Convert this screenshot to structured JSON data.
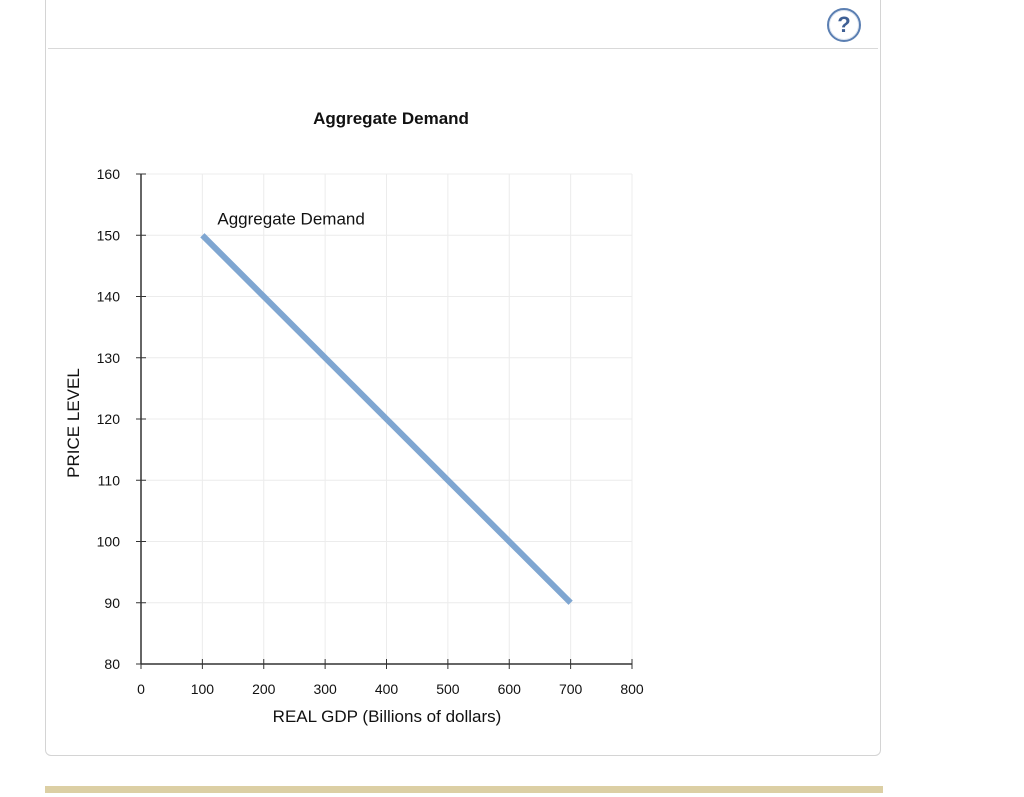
{
  "help": {
    "label": "?"
  },
  "colors": {
    "line": "#7fa6d1",
    "grid": "#ececec",
    "axis": "#333333",
    "footer_bar": "#dccfa4"
  },
  "chart_data": {
    "type": "line",
    "title": "Aggregate Demand",
    "xlabel": "REAL GDP (Billions of dollars)",
    "ylabel": "PRICE LEVEL",
    "xlim": [
      0,
      800
    ],
    "ylim": [
      80,
      160
    ],
    "x_ticks": [
      0,
      100,
      200,
      300,
      400,
      500,
      600,
      700,
      800
    ],
    "y_ticks": [
      80,
      90,
      100,
      110,
      120,
      130,
      140,
      150,
      160
    ],
    "grid": true,
    "series": [
      {
        "name": "Aggregate Demand",
        "x": [
          100,
          700
        ],
        "y": [
          150,
          90
        ]
      }
    ],
    "annotations": [
      {
        "text": "Aggregate Demand",
        "x": 100,
        "y": 150
      }
    ]
  }
}
